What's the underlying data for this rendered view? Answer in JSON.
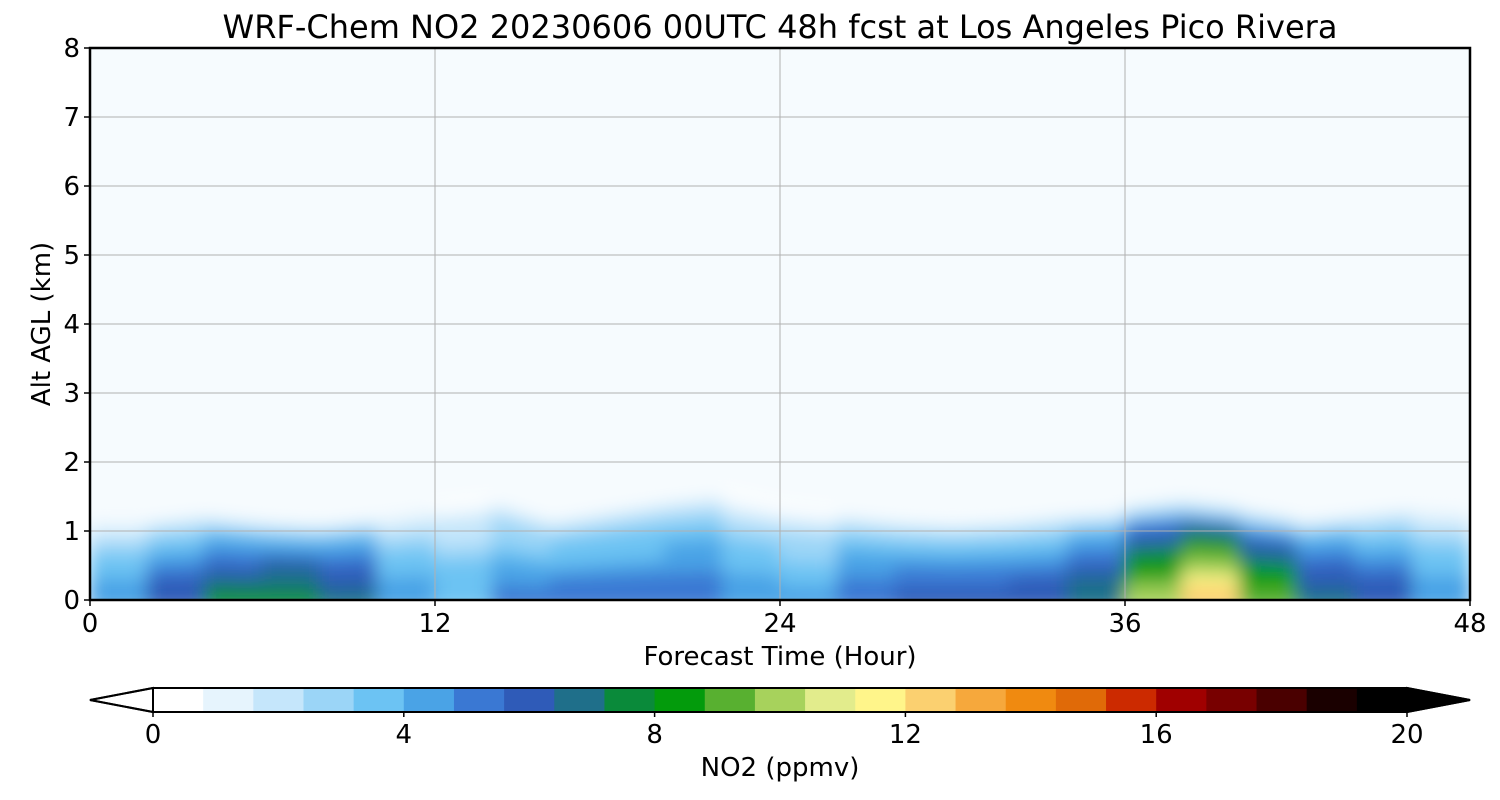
{
  "chart_data": {
    "type": "heatmap",
    "title": "WRF-Chem NO2  20230606 00UTC 48h fcst at Los Angeles Pico Rivera",
    "xlabel": "Forecast Time (Hour)",
    "ylabel": "Alt AGL (km)",
    "xlim": [
      0,
      48
    ],
    "ylim": [
      0,
      8
    ],
    "x_ticks": [
      "0",
      "12",
      "24",
      "36",
      "48"
    ],
    "y_ticks": [
      "0",
      "1",
      "2",
      "3",
      "4",
      "5",
      "6",
      "7",
      "8"
    ],
    "grid": true,
    "colorbar": {
      "label": "NO2  (ppmv)",
      "ticks": [
        "0",
        "4",
        "8",
        "12",
        "16",
        "20"
      ],
      "range": [
        0,
        20
      ],
      "extend": "both",
      "colors": [
        "#ffffff",
        "#e6f4fd",
        "#c5e6fb",
        "#9bd5f7",
        "#6cc3f3",
        "#4aa3e6",
        "#3a78d3",
        "#2f5bb8",
        "#1f6f8a",
        "#0a8a3a",
        "#039b0c",
        "#58b030",
        "#a7d25c",
        "#e2ec8c",
        "#fff58a",
        "#fbd070",
        "#f6a83c",
        "#f08a10",
        "#e06a08",
        "#cc2a00",
        "#a00000",
        "#780000",
        "#4a0000",
        "#1a0000",
        "#000000"
      ]
    },
    "hours": [
      0,
      2,
      4,
      6,
      8,
      10,
      12,
      14,
      16,
      18,
      20,
      22,
      24,
      26,
      28,
      30,
      32,
      34,
      36,
      38,
      40,
      42,
      44,
      46,
      48
    ],
    "boundary_layer_top_km": [
      1.2,
      1.2,
      1.3,
      1.2,
      1.15,
      1.25,
      1.4,
      1.5,
      1.2,
      1.35,
      1.5,
      1.6,
      1.4,
      1.3,
      1.2,
      1.15,
      1.2,
      1.3,
      1.35,
      1.45,
      1.35,
      1.2,
      1.3,
      1.4,
      1.35
    ],
    "surface_max_no2_ppmv": [
      4.5,
      5,
      7.5,
      8,
      7.6,
      6.5,
      3,
      5,
      5.5,
      5.5,
      5.5,
      6,
      3,
      5.5,
      6,
      6,
      6,
      6.5,
      8,
      13,
      12,
      7.5,
      6.5,
      6.5,
      3
    ]
  }
}
